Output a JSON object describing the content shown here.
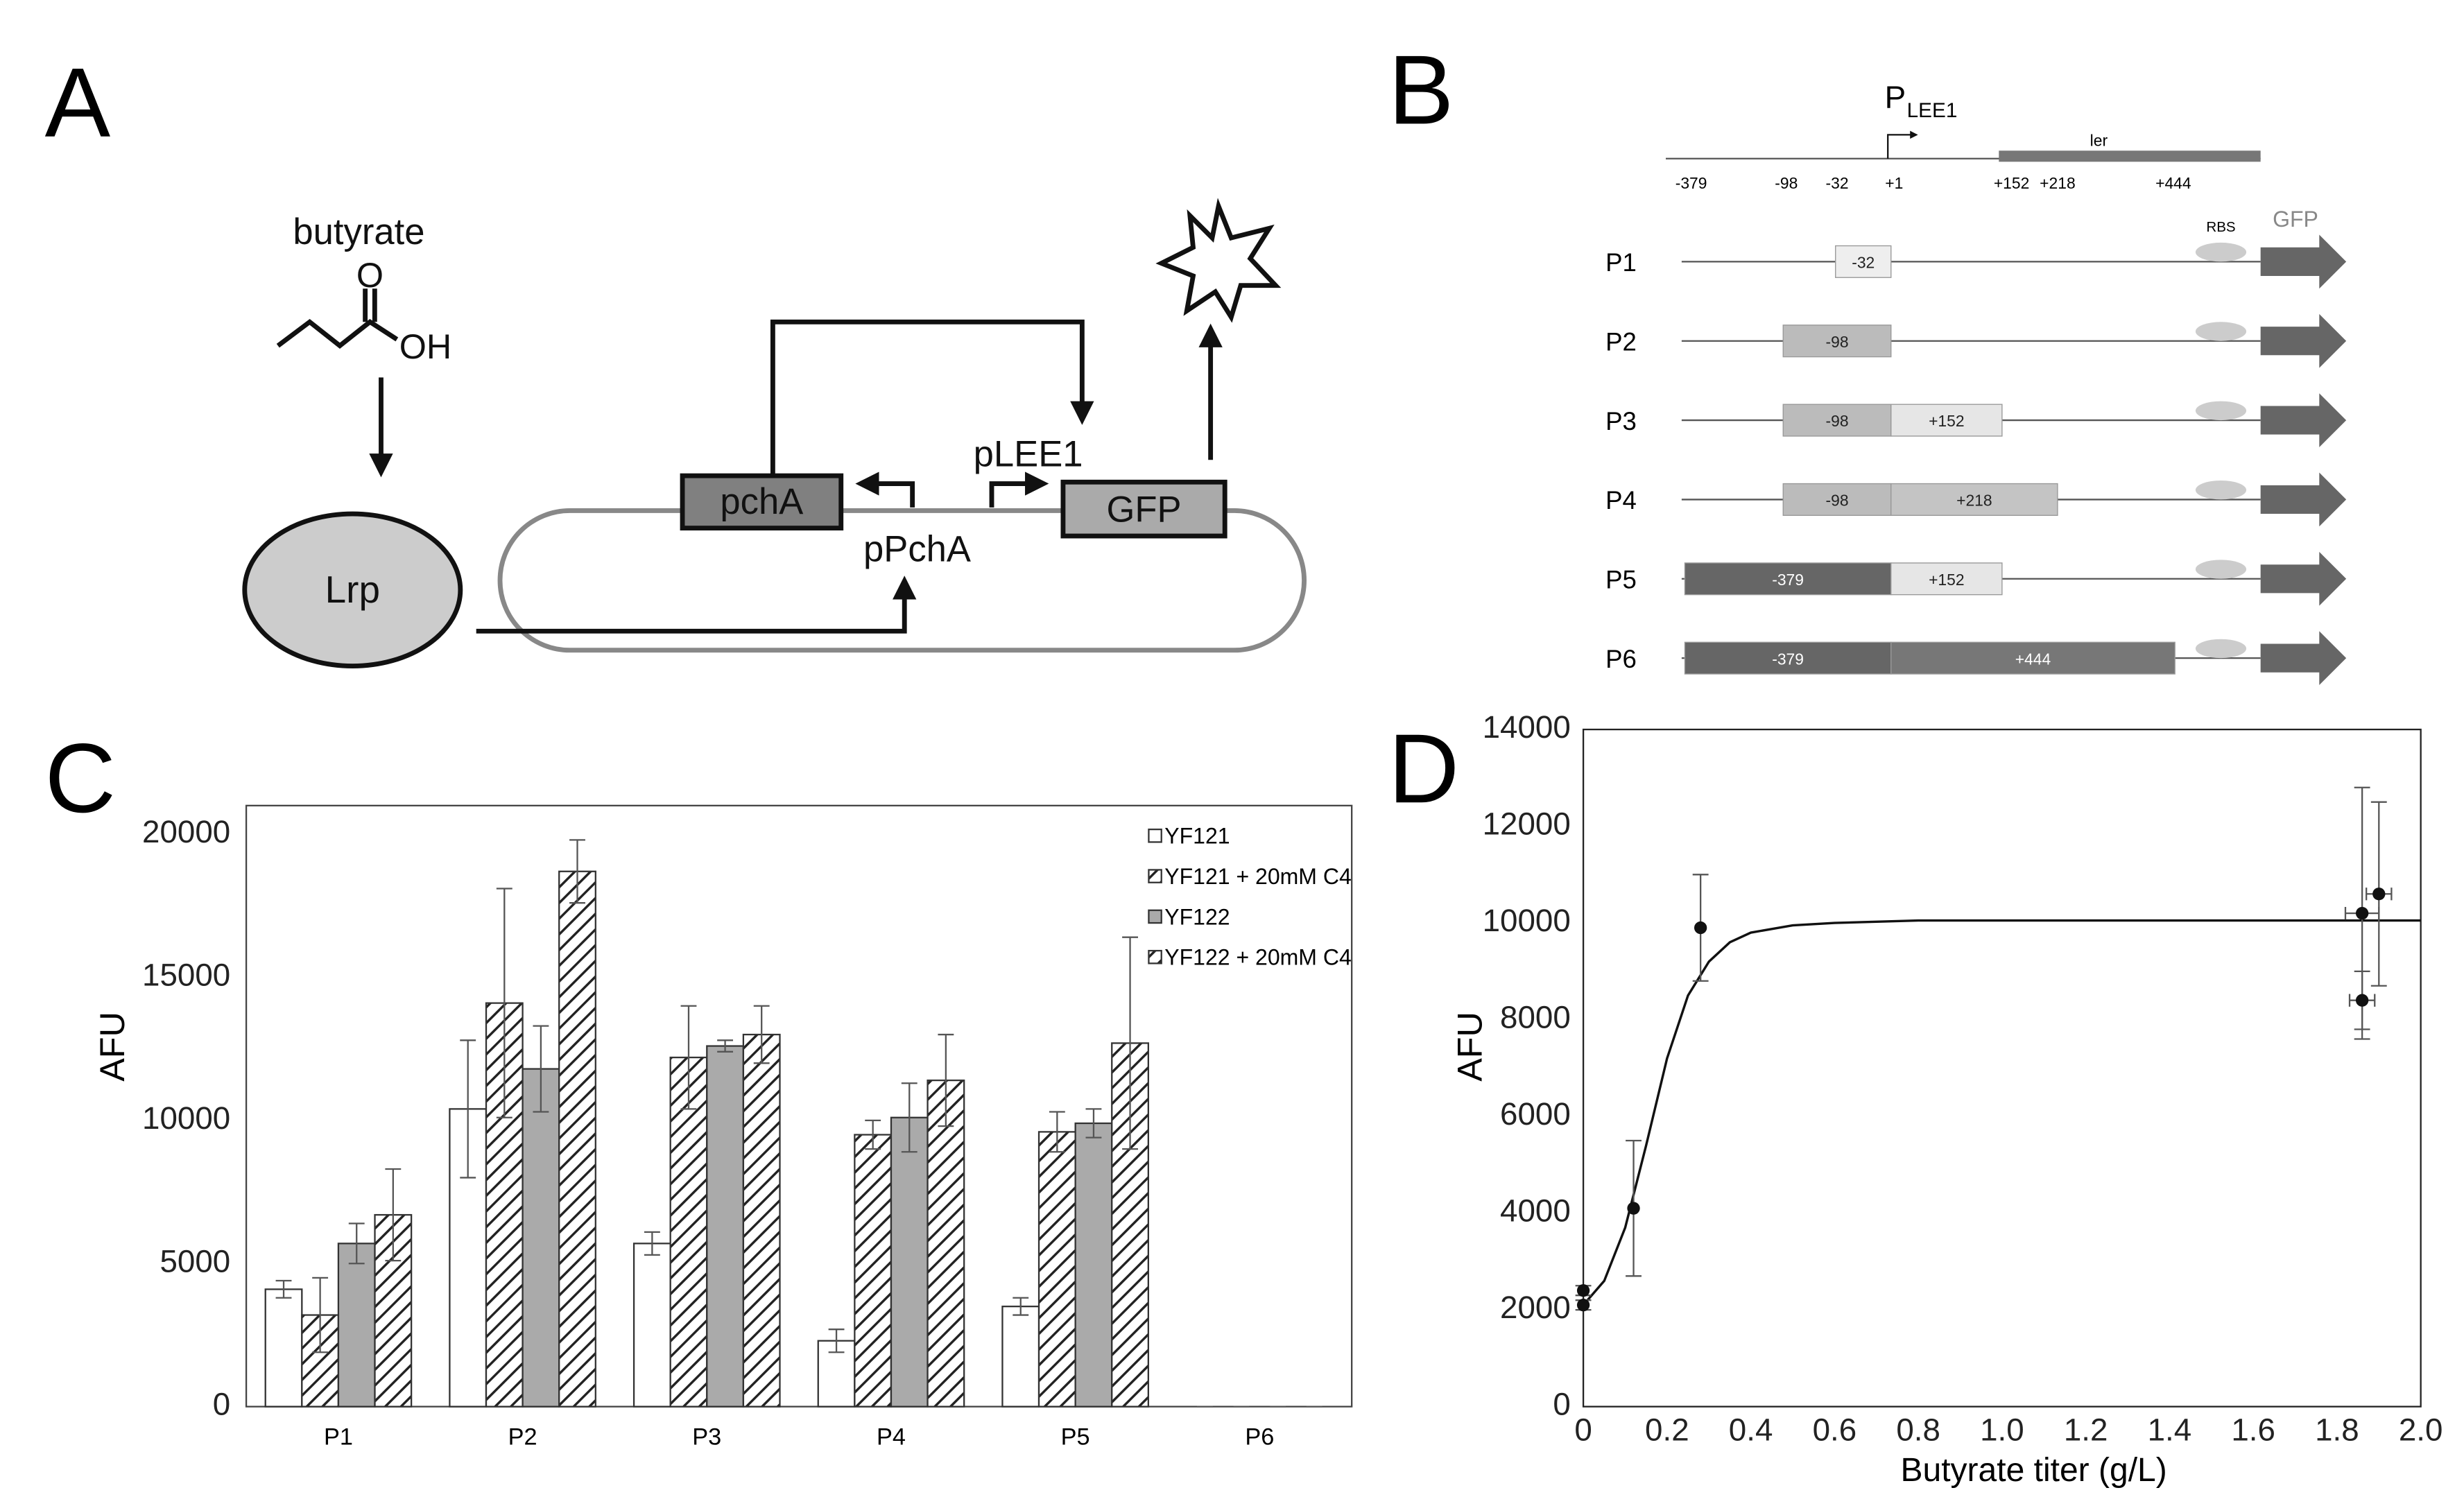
{
  "panels": [
    "A",
    "B",
    "C",
    "D"
  ],
  "diagram_a": {
    "butyrate": "butyrate",
    "o": "O",
    "oh": "OH",
    "lrp": "Lrp",
    "pcha": "pchA",
    "ppcha": "pPchA",
    "plee1": "pLEE1",
    "gfp": "GFP"
  },
  "diagram_b": {
    "promoter": "P",
    "promoter_sub": "LEE1",
    "gene": "ler",
    "positions": [
      "-379",
      "-98",
      "-32",
      "+1",
      "+152",
      "+218",
      "+444"
    ],
    "rbs": "RBS",
    "reporter": "GFP",
    "rows": [
      {
        "label": "P1",
        "segments": [
          "-32"
        ]
      },
      {
        "label": "P2",
        "segments": [
          "-98"
        ]
      },
      {
        "label": "P3",
        "segments": [
          "-98",
          "+152"
        ]
      },
      {
        "label": "P4",
        "segments": [
          "-98",
          "+218"
        ]
      },
      {
        "label": "P5",
        "segments": [
          "-379",
          "+152"
        ]
      },
      {
        "label": "P6",
        "segments": [
          "-379",
          "+444"
        ]
      }
    ]
  },
  "chart_data": [
    {
      "type": "bar",
      "y_label": "AFU",
      "categories": [
        "P1",
        "P2",
        "P3",
        "P4",
        "P5",
        "P6"
      ],
      "series": [
        {
          "name": "YF121",
          "color": "#ffffff",
          "hatch": false,
          "values": [
            4100,
            10400,
            5700,
            2300,
            3500,
            0
          ],
          "errors": [
            300,
            2400,
            400,
            400,
            300,
            0
          ]
        },
        {
          "name": "YF121 + 20mM C4",
          "color": "#ffffff",
          "hatch": true,
          "values": [
            3200,
            14100,
            12200,
            9500,
            9600,
            0
          ],
          "errors": [
            1300,
            4000,
            1800,
            500,
            700,
            0
          ]
        },
        {
          "name": "YF122",
          "color": "#aaaaaa",
          "hatch": false,
          "values": [
            5700,
            11800,
            12600,
            10100,
            9900,
            0
          ],
          "errors": [
            700,
            1500,
            200,
            1200,
            500,
            0
          ]
        },
        {
          "name": "YF122 + 20mM C4",
          "color": "#ffffff",
          "hatch": true,
          "values": [
            6700,
            18700,
            13000,
            11400,
            12700,
            0
          ],
          "errors": [
            1600,
            1100,
            1000,
            1600,
            3700,
            0
          ]
        }
      ],
      "ylim": [
        0,
        21000
      ],
      "yticks": [
        0,
        5000,
        10000,
        15000,
        20000
      ],
      "grid": false,
      "legend": "upper right"
    },
    {
      "type": "scatter",
      "x_label": "Butyrate titer (g/L)",
      "y_label": "AFU",
      "x": [
        0,
        0,
        0.12,
        0.28,
        1.86,
        1.86,
        1.9
      ],
      "values": [
        2400,
        2100,
        4100,
        9900,
        10200,
        8400,
        10600
      ],
      "errors": [
        100,
        100,
        1400,
        1100,
        2600,
        600,
        1900
      ],
      "x_errors": [
        null,
        null,
        null,
        null,
        0.04,
        0.03,
        0.03
      ],
      "color": "#111111",
      "fit": {
        "x": [
          0,
          0.05,
          0.1,
          0.15,
          0.2,
          0.25,
          0.3,
          0.35,
          0.4,
          0.5,
          0.6,
          0.8,
          1.0,
          1.5,
          2.0
        ],
        "values": [
          2100,
          2600,
          3700,
          5400,
          7200,
          8500,
          9200,
          9600,
          9800,
          9950,
          10000,
          10050,
          10050,
          10050,
          10050
        ]
      },
      "xlim": [
        0,
        2.0
      ],
      "xticks": [
        0,
        0.2,
        0.4,
        0.6,
        0.8,
        {
          "value": 1,
          "label": "1.0"
        },
        1.2,
        1.4,
        1.6,
        1.8,
        {
          "value": 2,
          "label": "2.0"
        }
      ],
      "ylim": [
        0,
        14000
      ],
      "yticks": [
        0,
        2000,
        4000,
        6000,
        8000,
        10000,
        12000,
        14000
      ],
      "grid": false
    }
  ]
}
